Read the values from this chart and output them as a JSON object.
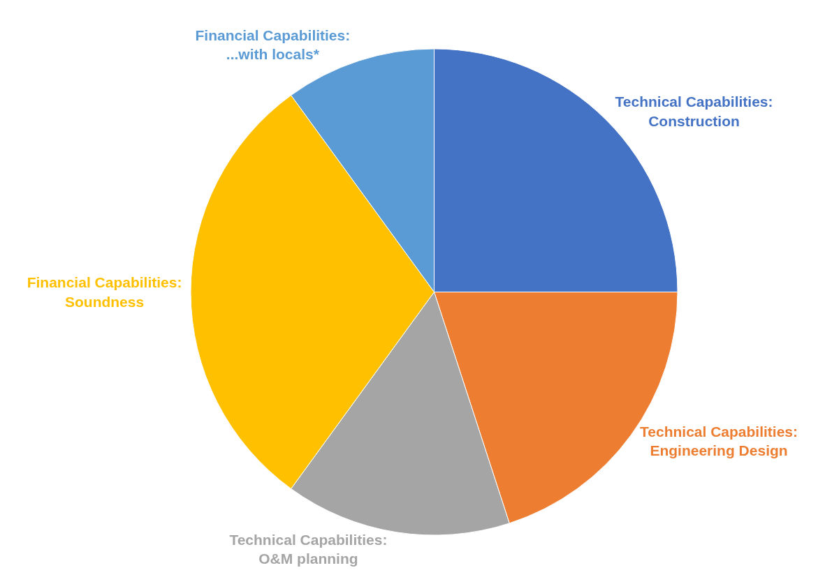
{
  "chart_data": {
    "type": "pie",
    "categories": [
      "Technical Capabilities:\nConstruction",
      "Technical Capabilities:\nEngineering Design",
      "Technical Capabilities:\nO&M planning",
      "Financial Capabilities:\nSoundness",
      "Financial Capabilities:\n...with locals*"
    ],
    "values": [
      25,
      20,
      15,
      30,
      10
    ],
    "colors": [
      "#4472c4",
      "#ed7d31",
      "#a5a5a5",
      "#ffc000",
      "#5b9bd5"
    ],
    "legend": false
  }
}
